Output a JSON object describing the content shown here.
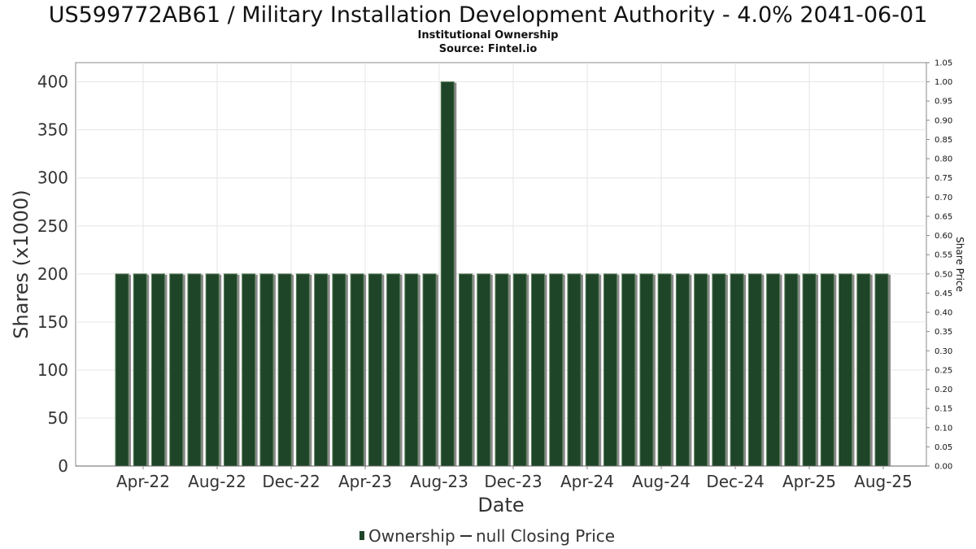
{
  "chart_data": {
    "type": "bar",
    "title": "US599772AB61 / Military Installation Development Authority - 4.0% 2041-06-01",
    "subtitle": "Institutional Ownership",
    "source": "Source: Fintel.io",
    "xlabel": "Date",
    "ylabel": "Shares (x1000)",
    "y2label": "Share Price",
    "ylim": [
      0,
      420
    ],
    "y2lim": [
      0,
      1.05
    ],
    "y_ticks": [
      "0",
      "50",
      "100",
      "150",
      "200",
      "250",
      "300",
      "350",
      "400"
    ],
    "y2_ticks": [
      "0.00",
      "0.05",
      "0.10",
      "0.15",
      "0.20",
      "0.25",
      "0.30",
      "0.35",
      "0.40",
      "0.45",
      "0.50",
      "0.55",
      "0.60",
      "0.65",
      "0.70",
      "0.75",
      "0.80",
      "0.85",
      "0.90",
      "0.95",
      "1.00",
      "1.05"
    ],
    "x_ticks": [
      "Apr-22",
      "Aug-22",
      "Dec-22",
      "Apr-23",
      "Aug-23",
      "Dec-23",
      "Apr-24",
      "Aug-24",
      "Dec-24",
      "Apr-25",
      "Aug-25"
    ],
    "grid": true,
    "legend_position": "bottom-center",
    "series": [
      {
        "name": "Ownership",
        "color": "#1f4528",
        "values": [
          200,
          200,
          200,
          200,
          200,
          200,
          200,
          200,
          200,
          200,
          200,
          200,
          200,
          200,
          200,
          200,
          200,
          200,
          400,
          200,
          200,
          200,
          200,
          200,
          200,
          200,
          200,
          200,
          200,
          200,
          200,
          200,
          200,
          200,
          200,
          200,
          200,
          200,
          200,
          200,
          200,
          200,
          200
        ]
      }
    ],
    "legend": [
      {
        "label": "Ownership",
        "marker": "bar",
        "color": "#1f4528"
      },
      {
        "label": "null Closing Price",
        "marker": "line",
        "color": "#333333"
      }
    ]
  }
}
